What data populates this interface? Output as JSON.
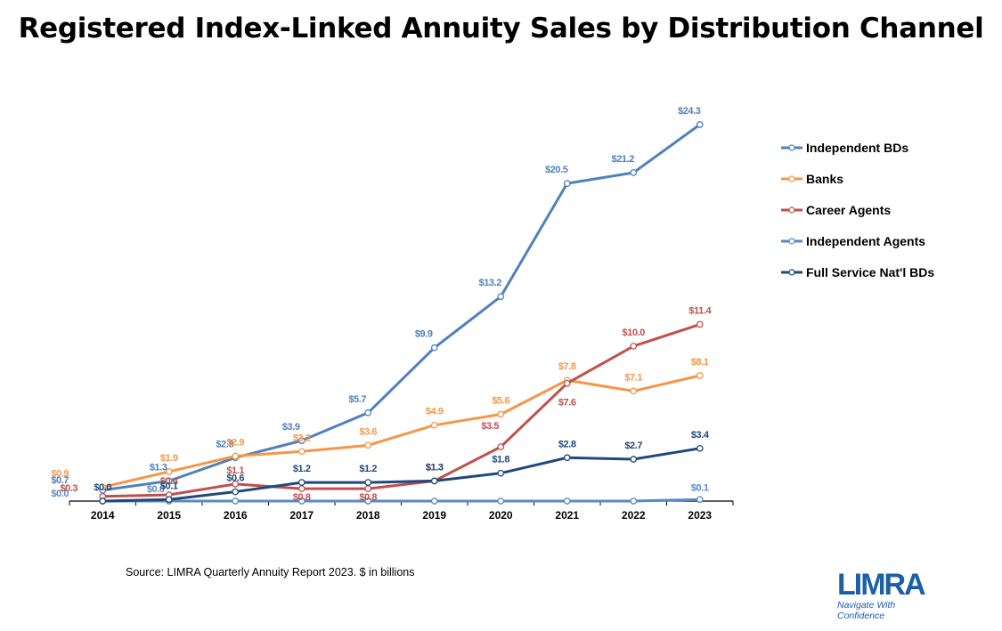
{
  "title": "Registered Index-Linked Annuity Sales by Distribution Channel",
  "source": "Source: LIMRA Quarterly Annuity Report 2023. $ in billions",
  "logo": {
    "word": "LIMRA",
    "tagline_1": "Navigate With",
    "tagline_2": "Confidence",
    "color": "#1c5fa8"
  },
  "chart_data": {
    "type": "line",
    "title": "Registered Index-Linked Annuity Sales by Distribution Channel",
    "xlabel": "",
    "ylabel": "$ in billions",
    "x": [
      "2014",
      "2015",
      "2016",
      "2017",
      "2018",
      "2019",
      "2020",
      "2021",
      "2022",
      "2023"
    ],
    "ylim": [
      0,
      24.3
    ],
    "grid": false,
    "legend_position": "right",
    "label_prefix": "$",
    "series": [
      {
        "name": "Independent BDs",
        "color": "#4f81bd",
        "values": [
          0.7,
          1.3,
          2.8,
          3.9,
          5.7,
          9.9,
          13.2,
          20.5,
          21.2,
          24.3
        ]
      },
      {
        "name": "Banks",
        "color": "#f79646",
        "values": [
          0.9,
          1.9,
          2.9,
          3.2,
          3.6,
          4.9,
          5.6,
          7.8,
          7.1,
          8.1
        ]
      },
      {
        "name": "Career Agents",
        "color": "#c0504d",
        "values": [
          0.3,
          0.4,
          1.1,
          0.8,
          0.8,
          1.3,
          3.5,
          7.6,
          10.0,
          11.4
        ]
      },
      {
        "name": "Independent Agents",
        "color": "#5a8ac6",
        "values": [
          0.0,
          0.0,
          0.0,
          0.0,
          0.0,
          0.0,
          0.0,
          0.0,
          0.0,
          0.1
        ]
      },
      {
        "name": "Full Service Nat'l BDs",
        "color": "#1f497d",
        "values": [
          0.0,
          0.1,
          0.6,
          1.2,
          1.2,
          1.3,
          1.8,
          2.8,
          2.7,
          3.4
        ]
      }
    ]
  }
}
